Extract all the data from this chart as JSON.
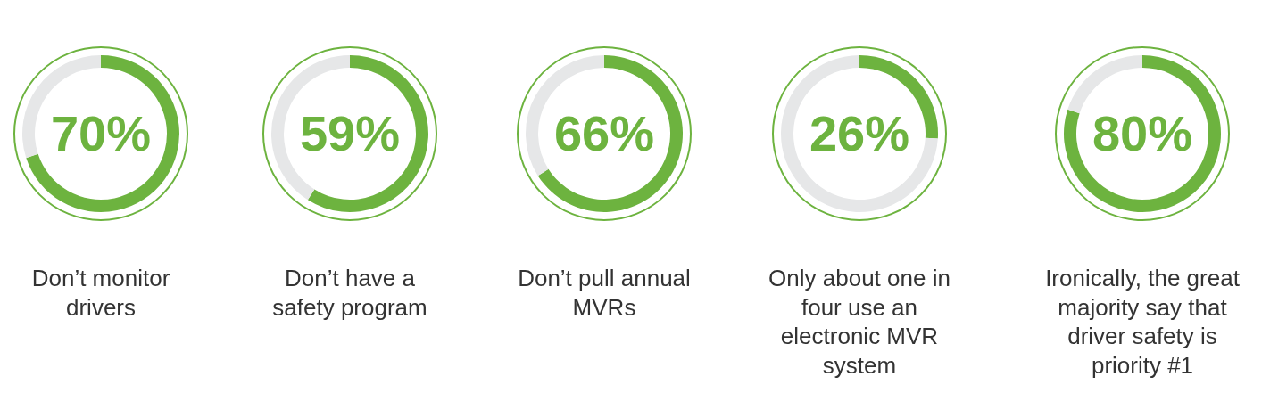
{
  "chart_data": [
    {
      "type": "donut",
      "title": "Don’t monitor drivers",
      "categories": [
        null,
        null
      ],
      "values": [
        70,
        30
      ],
      "colors": [
        "#6db33f",
        "#e6e7e8"
      ],
      "value_labels": [
        "70%",
        null
      ]
    },
    {
      "type": "donut",
      "title": "Don’t have a safety program",
      "categories": [
        null,
        null
      ],
      "values": [
        59,
        41
      ],
      "colors": [
        "#6db33f",
        "#e6e7e8"
      ],
      "value_labels": [
        "59%",
        null
      ]
    },
    {
      "type": "donut",
      "title": "Don’t pull annual MVRs",
      "categories": [
        null,
        null
      ],
      "values": [
        66,
        34
      ],
      "colors": [
        "#6db33f",
        "#e6e7e8"
      ],
      "value_labels": [
        "66%",
        null
      ]
    },
    {
      "type": "donut",
      "title": "Only about one in four use an electronic MVR system",
      "categories": [
        null,
        null
      ],
      "values": [
        26,
        74
      ],
      "colors": [
        "#6db33f",
        "#e6e7e8"
      ],
      "value_labels": [
        "26%",
        null
      ]
    },
    {
      "type": "donut",
      "title": "Ironically, the great majority say that driver safety is priority #1",
      "categories": [
        null,
        null
      ],
      "values": [
        80,
        20
      ],
      "colors": [
        "#6db33f",
        "#e6e7e8"
      ],
      "value_labels": [
        "80%",
        null
      ]
    }
  ]
}
